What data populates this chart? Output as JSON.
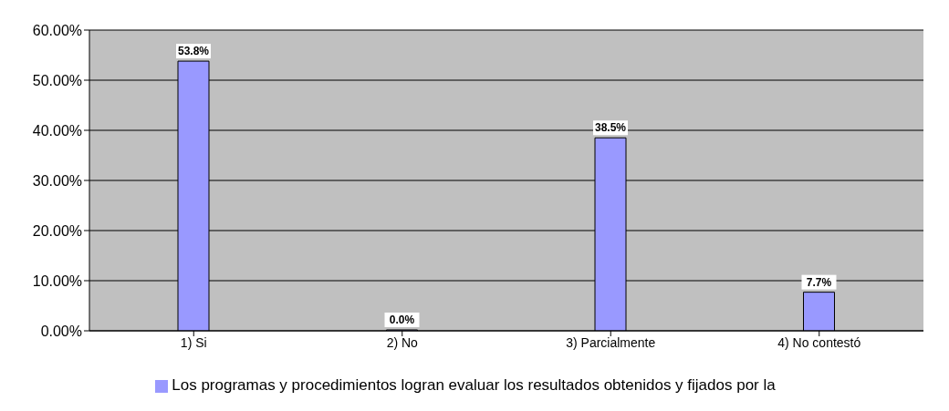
{
  "chart_data": {
    "type": "bar",
    "categories": [
      "1) Si",
      "2) No",
      "3) Parcialmente",
      "4) No contestó"
    ],
    "series": [
      {
        "name": "Los programas y procedimientos logran evaluar los resultados obtenidos y fijados por la",
        "color": "#9999ff",
        "values": [
          53.8,
          0,
          38.5,
          7.7
        ],
        "value_labels": [
          "53.8%",
          "0.0%",
          "38.5%",
          "7.7%"
        ]
      }
    ],
    "ylim": [
      0,
      60
    ],
    "yticks": [
      {
        "value": 0,
        "label": "0.00%"
      },
      {
        "value": 10,
        "label": "10.00%"
      },
      {
        "value": 20,
        "label": "20.00%"
      },
      {
        "value": 30,
        "label": "30.00%"
      },
      {
        "value": 40,
        "label": "40.00%"
      },
      {
        "value": 50,
        "label": "50.00%"
      },
      {
        "value": 60,
        "label": "60.00%"
      }
    ],
    "grid": "y",
    "legend": "bottom"
  }
}
